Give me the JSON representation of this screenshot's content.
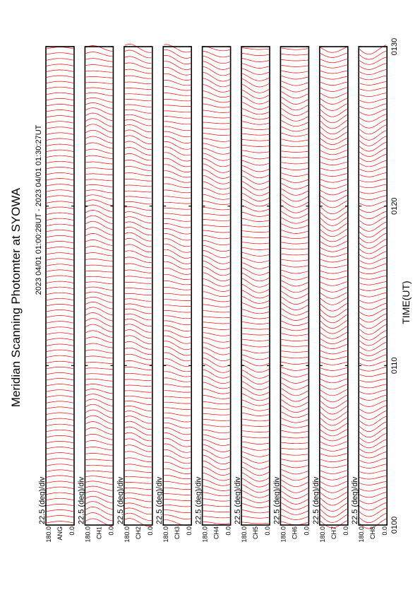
{
  "chart_data": {
    "type": "line",
    "title": "Meridian Scanning Photomter at SYOWA",
    "subtitle": "2023 04/01 01:00:28UT - 2023 04/01 01:30:27UT",
    "xlabel": "TIME(UT)",
    "xlim": [
      "0100",
      "0130"
    ],
    "x_ticks": [
      "0100",
      "0110",
      "0120",
      "0130"
    ],
    "ylim": [
      0.0,
      180.0
    ],
    "y_tick_labels": [
      "180.0",
      "0.0"
    ],
    "scale_label": "22.5 (deg)/div",
    "panels": [
      {
        "channel": "ANG"
      },
      {
        "channel": "CH1"
      },
      {
        "channel": "CH2"
      },
      {
        "channel": "CH3"
      },
      {
        "channel": "CH4"
      },
      {
        "channel": "CH5"
      },
      {
        "channel": "CH6"
      },
      {
        "channel": "CH7"
      },
      {
        "channel": "CH8"
      }
    ],
    "trace_color": "#ff0000",
    "grid": false
  }
}
